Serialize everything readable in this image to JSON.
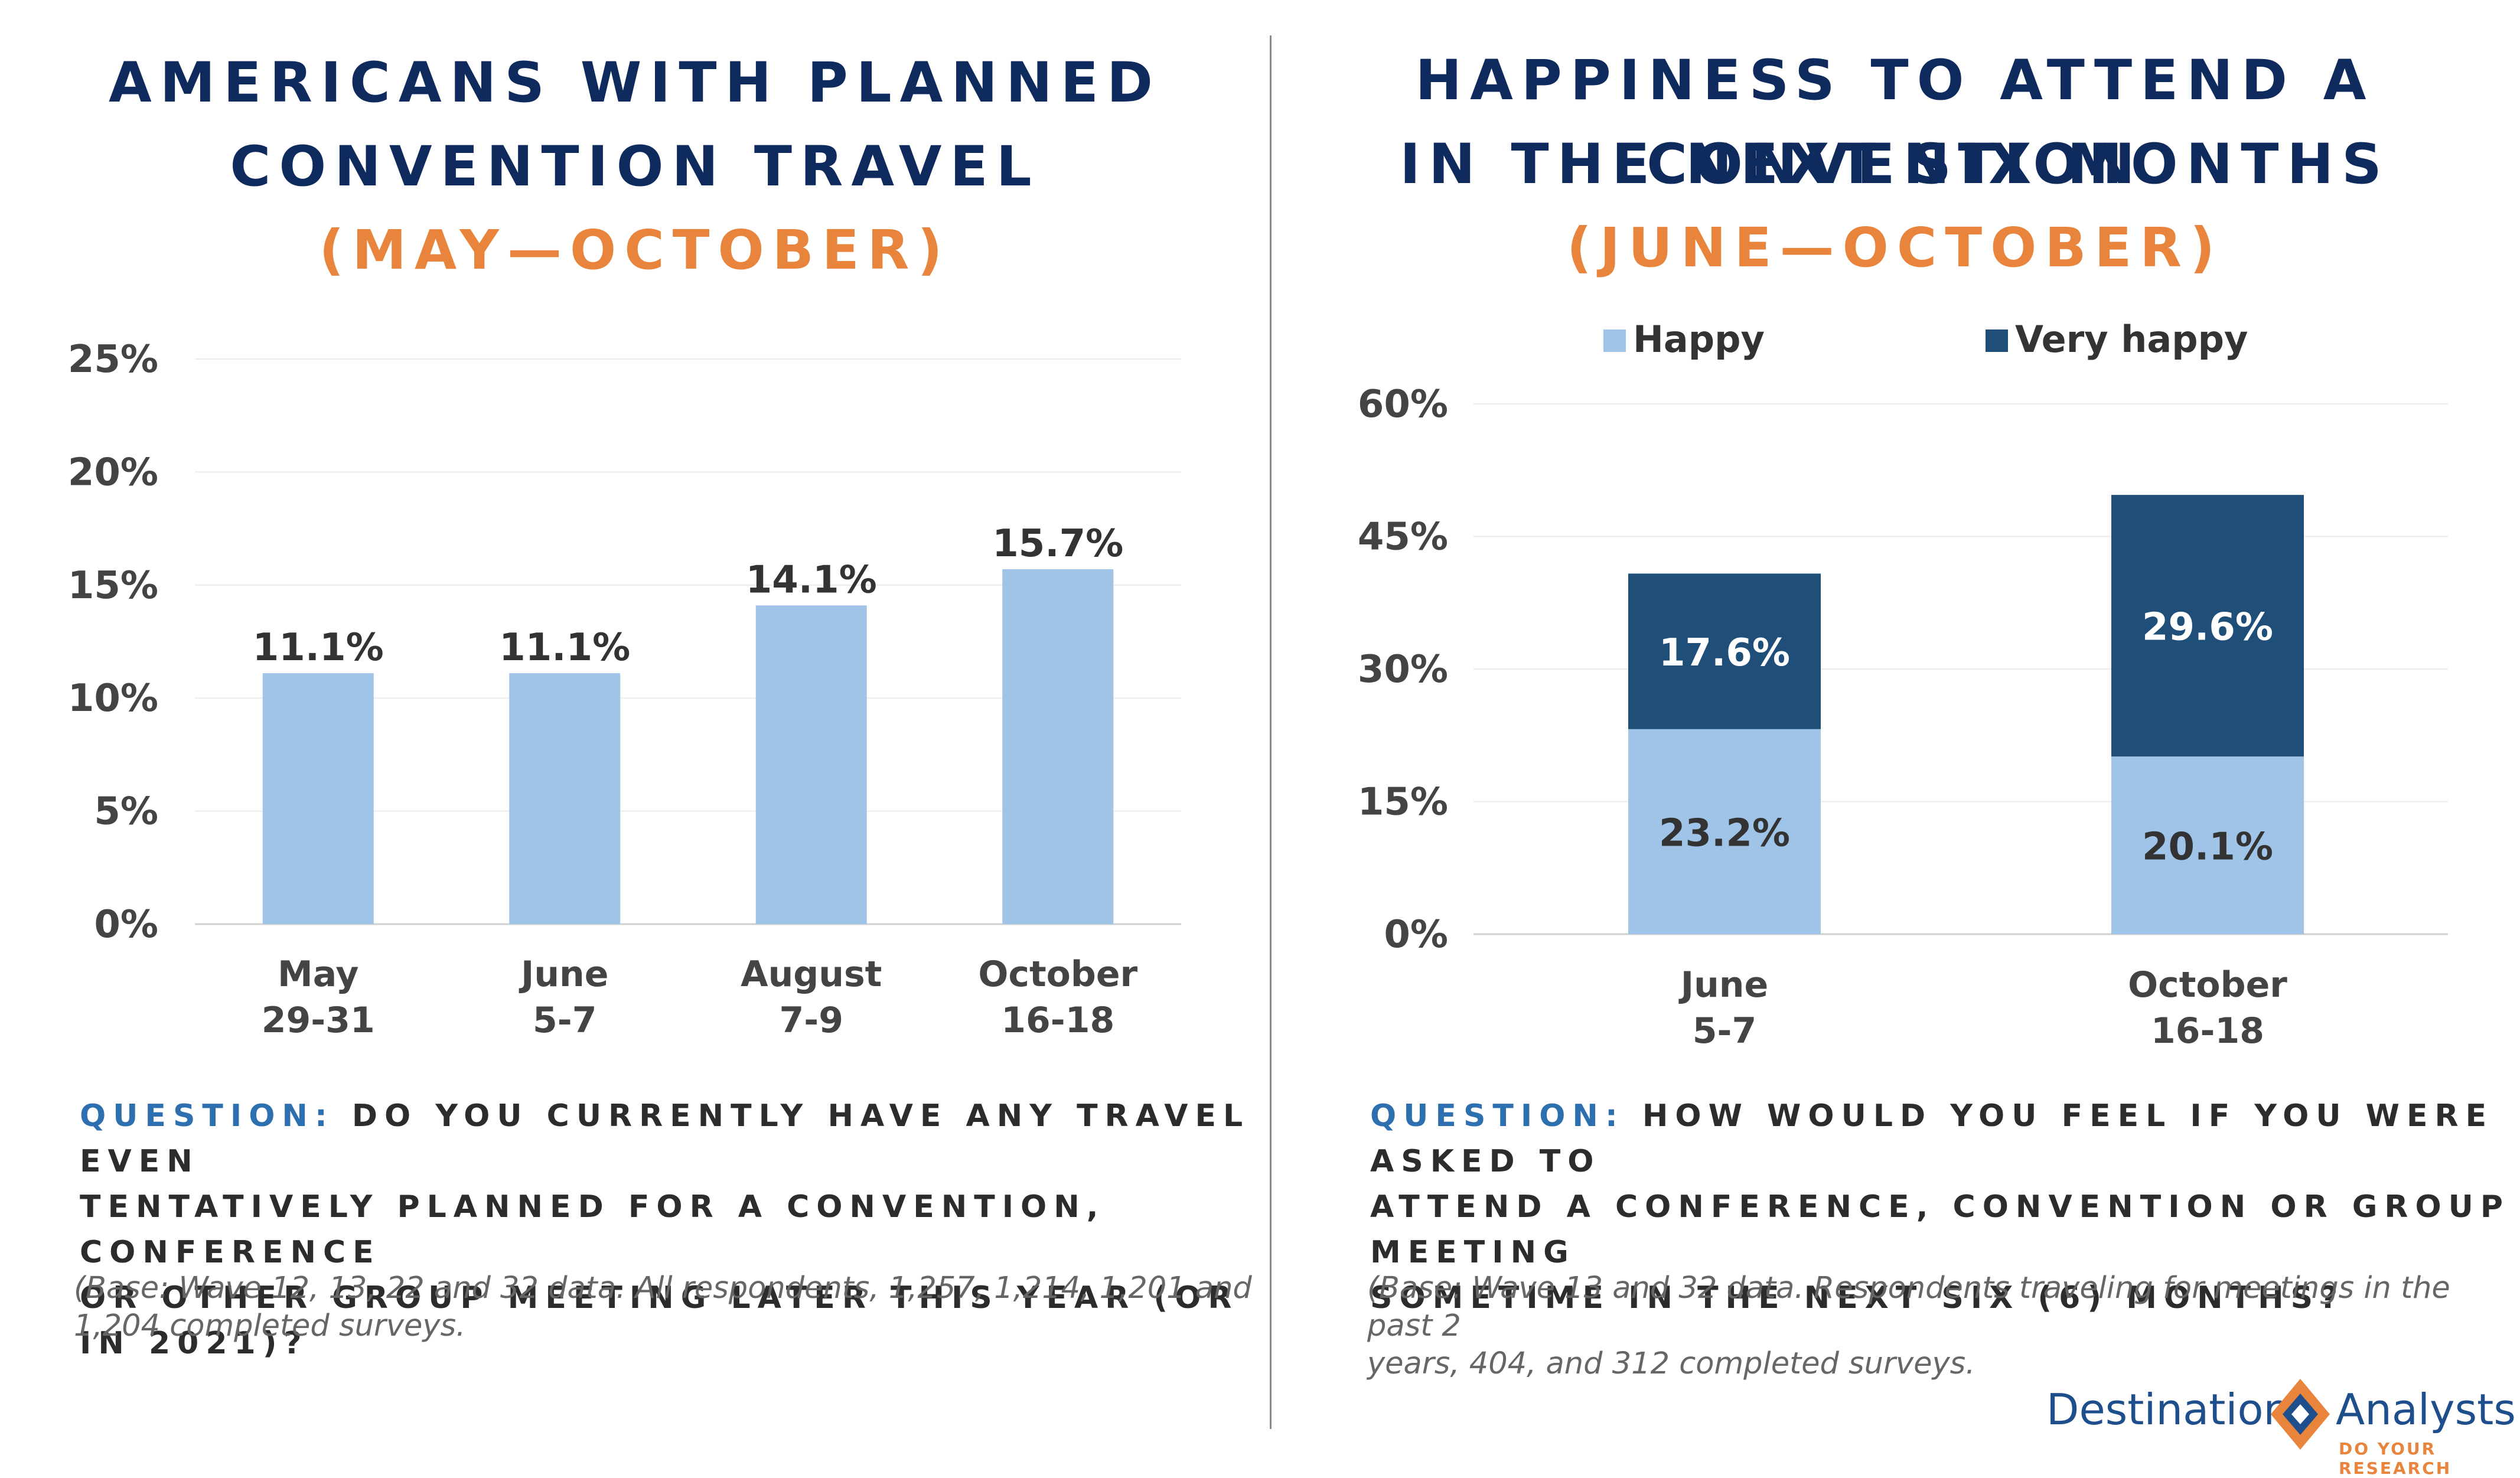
{
  "left": {
    "title_line1": "AMERICANS WITH PLANNED",
    "title_line2": "CONVENTION TRAVEL",
    "subtitle": "(MAY—OCTOBER)",
    "question_prefix": "QUESTION:",
    "question_text": "DO YOU CURRENTLY HAVE ANY TRAVEL EVEN\nTENTATIVELY PLANNED FOR A CONVENTION, CONFERENCE\nOR OTHER GROUP MEETING LATER THIS YEAR (OR IN 2021)?",
    "base": "(Base: Wave 12, 13, 22 and 32 data. All respondents, 1,257, 1,214, 1,201 and\n1,204 completed surveys."
  },
  "right": {
    "title_line1": "HAPPINESS TO ATTEND A CONVENTION",
    "title_line2": "IN THE NEXT SIX MONTHS",
    "subtitle": "(JUNE—OCTOBER)",
    "question_prefix": "QUESTION:",
    "question_text": "HOW WOULD YOU FEEL IF YOU WERE ASKED TO\nATTEND A CONFERENCE, CONVENTION OR GROUP MEETING\nSOMETIME IN THE NEXT SIX (6) MONTHS?",
    "base": "(Base: Wave 13 and 32 data. Respondents traveling for meetings in the past 2\nyears, 404,  and 312 completed surveys."
  },
  "logo": {
    "word1": "Destination",
    "word2": "Analysts",
    "tagline": "DO YOUR RESEARCH"
  },
  "colors": {
    "title": "#0f2a5c",
    "subtitle": "#e8843b",
    "light_bar": "#9fc4e8",
    "dark_bar": "#1f4e79",
    "question_prefix": "#2e6fb0"
  },
  "chart_data": [
    {
      "type": "bar",
      "categories": [
        [
          "May",
          "29-31"
        ],
        [
          "June",
          "5-7"
        ],
        [
          "August",
          "7-9"
        ],
        [
          "October",
          "16-18"
        ]
      ],
      "values": [
        11.1,
        11.1,
        14.1,
        15.7
      ],
      "data_labels": [
        "11.1%",
        "11.1%",
        "14.1%",
        "15.7%"
      ],
      "y_ticks": [
        "0%",
        "5%",
        "10%",
        "15%",
        "20%",
        "25%"
      ],
      "ylim": [
        0,
        25
      ],
      "grid": true,
      "legend": "none"
    },
    {
      "type": "bar",
      "stacked": true,
      "categories": [
        [
          "June",
          "5-7"
        ],
        [
          "October",
          "16-18"
        ]
      ],
      "series": [
        {
          "name": "Happy",
          "values": [
            23.2,
            20.1
          ],
          "labels": [
            "23.2%",
            "20.1%"
          ],
          "color": "#9fc4e8"
        },
        {
          "name": "Very happy",
          "values": [
            17.6,
            29.6
          ],
          "labels": [
            "17.6%",
            "29.6%"
          ],
          "color": "#1f4e79"
        }
      ],
      "y_ticks": [
        "0%",
        "15%",
        "30%",
        "45%",
        "60%"
      ],
      "ylim": [
        0,
        60
      ],
      "grid": true,
      "legend": "top"
    }
  ]
}
